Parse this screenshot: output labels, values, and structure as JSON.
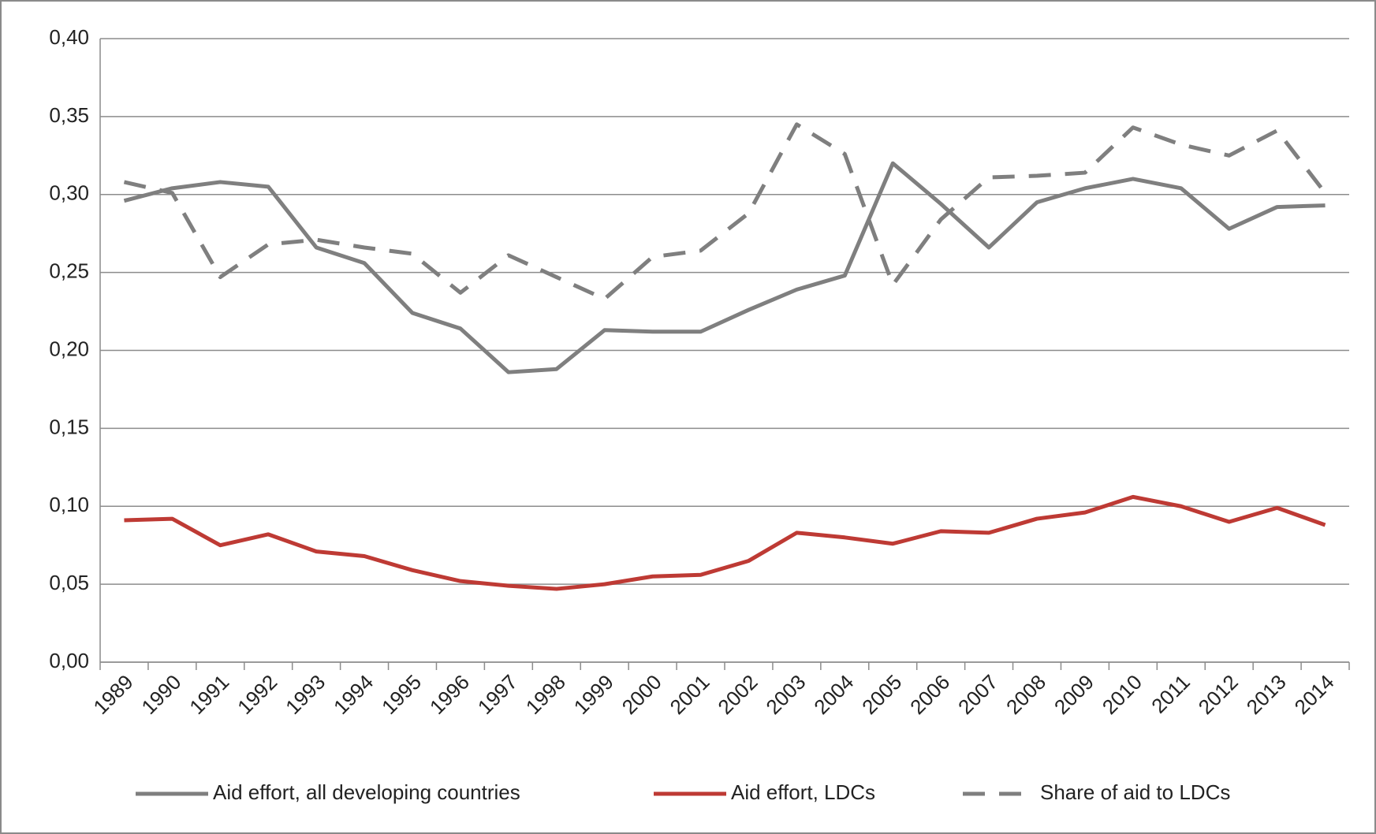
{
  "chart_data": {
    "type": "line",
    "categories": [
      "1989",
      "1990",
      "1991",
      "1992",
      "1993",
      "1994",
      "1995",
      "1996",
      "1997",
      "1998",
      "1999",
      "2000",
      "2001",
      "2002",
      "2003",
      "2004",
      "2005",
      "2006",
      "2007",
      "2008",
      "2009",
      "2010",
      "2011",
      "2012",
      "2013",
      "2014"
    ],
    "series": [
      {
        "name": "Aid effort, all developing countries",
        "color": "#7f7f7f",
        "style": "solid",
        "values": [
          0.296,
          0.304,
          0.308,
          0.305,
          0.266,
          0.256,
          0.224,
          0.214,
          0.186,
          0.188,
          0.213,
          0.212,
          0.212,
          0.226,
          0.239,
          0.248,
          0.32,
          0.294,
          0.266,
          0.295,
          0.304,
          0.31,
          0.304,
          0.278,
          0.292,
          0.293
        ]
      },
      {
        "name": "Aid effort, LDCs",
        "color": "#be3a34",
        "style": "solid",
        "values": [
          0.091,
          0.092,
          0.075,
          0.082,
          0.071,
          0.068,
          0.059,
          0.052,
          0.049,
          0.047,
          0.05,
          0.055,
          0.056,
          0.065,
          0.083,
          0.08,
          0.076,
          0.084,
          0.083,
          0.092,
          0.096,
          0.106,
          0.1,
          0.09,
          0.099,
          0.088
        ]
      },
      {
        "name": "Share of aid to LDCs",
        "color": "#7f7f7f",
        "style": "dashed",
        "values": [
          0.308,
          0.301,
          0.247,
          0.268,
          0.271,
          0.266,
          0.262,
          0.237,
          0.261,
          0.247,
          0.233,
          0.26,
          0.264,
          0.288,
          0.345,
          0.326,
          0.242,
          0.284,
          0.311,
          0.312,
          0.314,
          0.343,
          0.332,
          0.325,
          0.341,
          0.301
        ]
      }
    ],
    "ylim": [
      0,
      0.4
    ],
    "yticks": [
      {
        "value": 0,
        "label": "0,00"
      },
      {
        "value": 0.05,
        "label": "0,05"
      },
      {
        "value": 0.1,
        "label": "0,10"
      },
      {
        "value": 0.15,
        "label": "0,15"
      },
      {
        "value": 0.2,
        "label": "0,20"
      },
      {
        "value": 0.25,
        "label": "0,25"
      },
      {
        "value": 0.3,
        "label": "0,30"
      },
      {
        "value": 0.35,
        "label": "0,35"
      },
      {
        "value": 0.4,
        "label": "0,40"
      }
    ],
    "grid": true,
    "legend": "bottom"
  }
}
